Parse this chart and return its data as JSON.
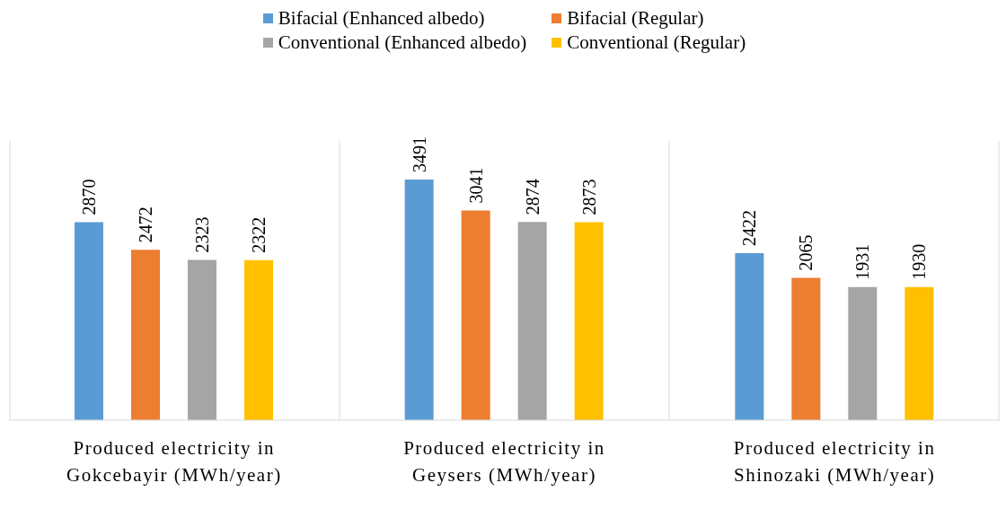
{
  "chart_data": {
    "type": "bar",
    "categories": [
      "Produced electricity in Gokcebayir (MWh/year)",
      "Produced electricity in Geysers (MWh/year)",
      "Produced electricity in Shinozaki (MWh/year)"
    ],
    "series": [
      {
        "name": "Bifacial (Enhanced albedo)",
        "color": "#5b9bd5",
        "values": [
          2870,
          3491,
          2422
        ]
      },
      {
        "name": "Bifacial (Regular)",
        "color": "#ed7d31",
        "values": [
          2472,
          3041,
          2065
        ]
      },
      {
        "name": "Conventional (Enhanced albedo)",
        "color": "#a5a5a5",
        "values": [
          2323,
          2874,
          1931
        ]
      },
      {
        "name": "Conventional (Regular)",
        "color": "#ffc000",
        "values": [
          2322,
          2873,
          1930
        ]
      }
    ],
    "data_labels": true,
    "grid": "x",
    "legend": "top",
    "tick_labels": "x"
  }
}
